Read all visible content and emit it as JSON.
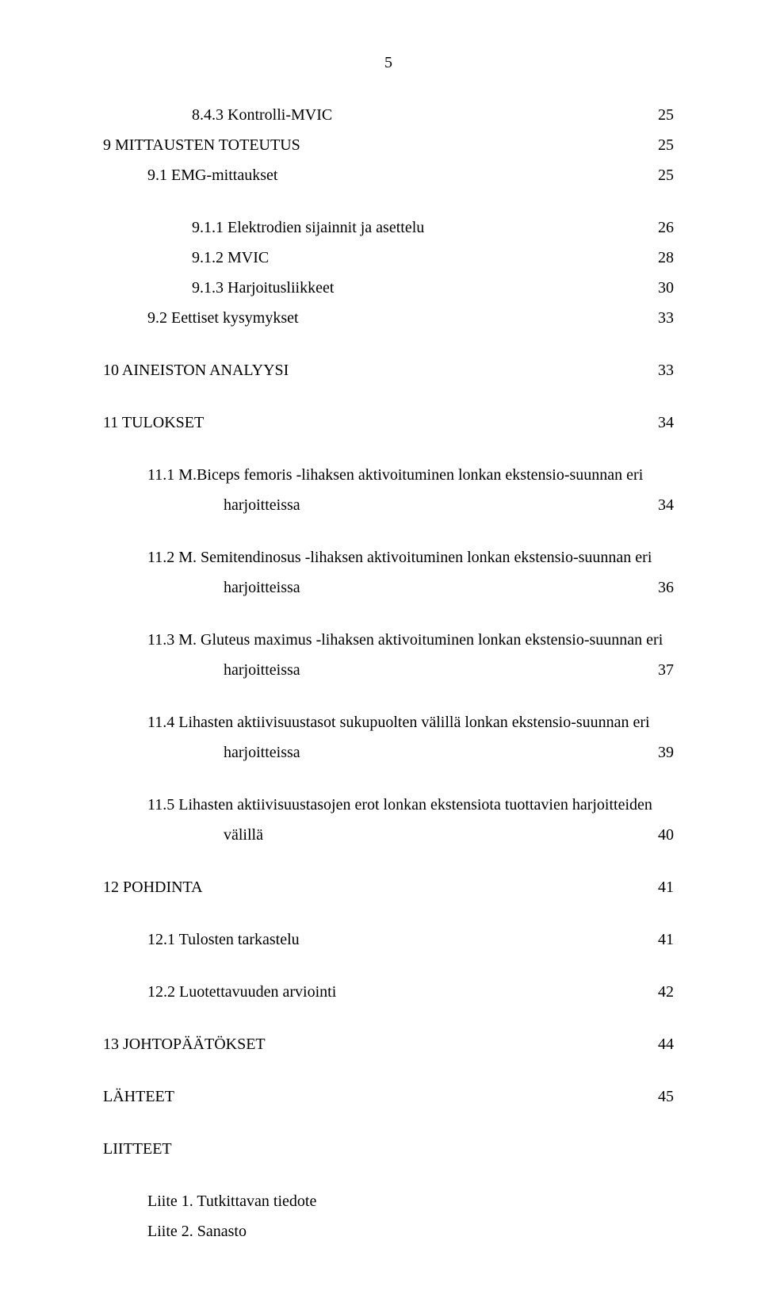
{
  "page_number": "5",
  "font": {
    "family": "Times New Roman",
    "size_pt": 12,
    "color": "#000000"
  },
  "background_color": "#ffffff",
  "entries": [
    {
      "level": 2,
      "text": "8.4.3 Kontrolli-MVIC",
      "page": "25"
    },
    {
      "level": 0,
      "text": "9   MITTAUSTEN TOTEUTUS",
      "page": "25"
    },
    {
      "level": 1,
      "text": "9.1   EMG-mittaukset",
      "page": "25",
      "gap_after": "md"
    },
    {
      "level": 2,
      "text": "9.1.1 Elektrodien sijainnit ja asettelu",
      "page": "26"
    },
    {
      "level": 2,
      "text": "9.1.2 MVIC",
      "page": "28"
    },
    {
      "level": 2,
      "text": "9.1.3 Harjoitusliikkeet",
      "page": "30"
    },
    {
      "level": 1,
      "text": "9.2   Eettiset kysymykset",
      "page": "33",
      "gap_after": "md"
    },
    {
      "level": 0,
      "text": "10 AINEISTON ANALYYSI",
      "page": "33",
      "gap_after": "md"
    },
    {
      "level": 0,
      "text": "11 TULOKSET",
      "page": "34",
      "gap_after": "md"
    },
    {
      "level": 1,
      "text": "11.1 M.Biceps femoris -lihaksen aktivoituminen lonkan ekstensio-suunnan eri",
      "cont": true
    },
    {
      "level": "2b",
      "text": "harjoitteissa",
      "page": "34",
      "gap_after": "md"
    },
    {
      "level": 1,
      "text": "11.2 M. Semitendinosus -lihaksen aktivoituminen lonkan ekstensio-suunnan eri",
      "cont": true
    },
    {
      "level": "2b",
      "text": "harjoitteissa",
      "page": "36",
      "gap_after": "md"
    },
    {
      "level": 1,
      "text": "11.3 M. Gluteus maximus -lihaksen aktivoituminen lonkan ekstensio-suunnan eri",
      "cont": true
    },
    {
      "level": "2b",
      "text": "harjoitteissa",
      "page": "37",
      "gap_after": "md"
    },
    {
      "level": 1,
      "text": "11.4 Lihasten aktiivisuustasot sukupuolten välillä lonkan ekstensio-suunnan eri",
      "cont": true
    },
    {
      "level": "2b",
      "text": "harjoitteissa",
      "page": "39",
      "gap_after": "md"
    },
    {
      "level": 1,
      "text": "11.5 Lihasten aktiivisuustasojen erot lonkan ekstensiota tuottavien harjoitteiden",
      "cont": true
    },
    {
      "level": "2b",
      "text": "välillä",
      "page": "40",
      "gap_after": "md"
    },
    {
      "level": 0,
      "text": "12 POHDINTA",
      "page": "41",
      "gap_after": "md"
    },
    {
      "level": 1,
      "text": "12.1 Tulosten tarkastelu",
      "page": "41",
      "gap_after": "md"
    },
    {
      "level": 1,
      "text": "12.2 Luotettavuuden arviointi",
      "page": "42",
      "gap_after": "md"
    },
    {
      "level": 0,
      "text": "13 JOHTOPÄÄTÖKSET",
      "page": "44",
      "gap_after": "md"
    },
    {
      "level": 0,
      "text": "LÄHTEET",
      "page": "45",
      "gap_after": "md"
    },
    {
      "level": 0,
      "text": "LIITTEET",
      "gap_after": "md"
    },
    {
      "level": 1,
      "text": "Liite 1. Tutkittavan tiedote"
    },
    {
      "level": 1,
      "text": "Liite 2. Sanasto"
    }
  ]
}
